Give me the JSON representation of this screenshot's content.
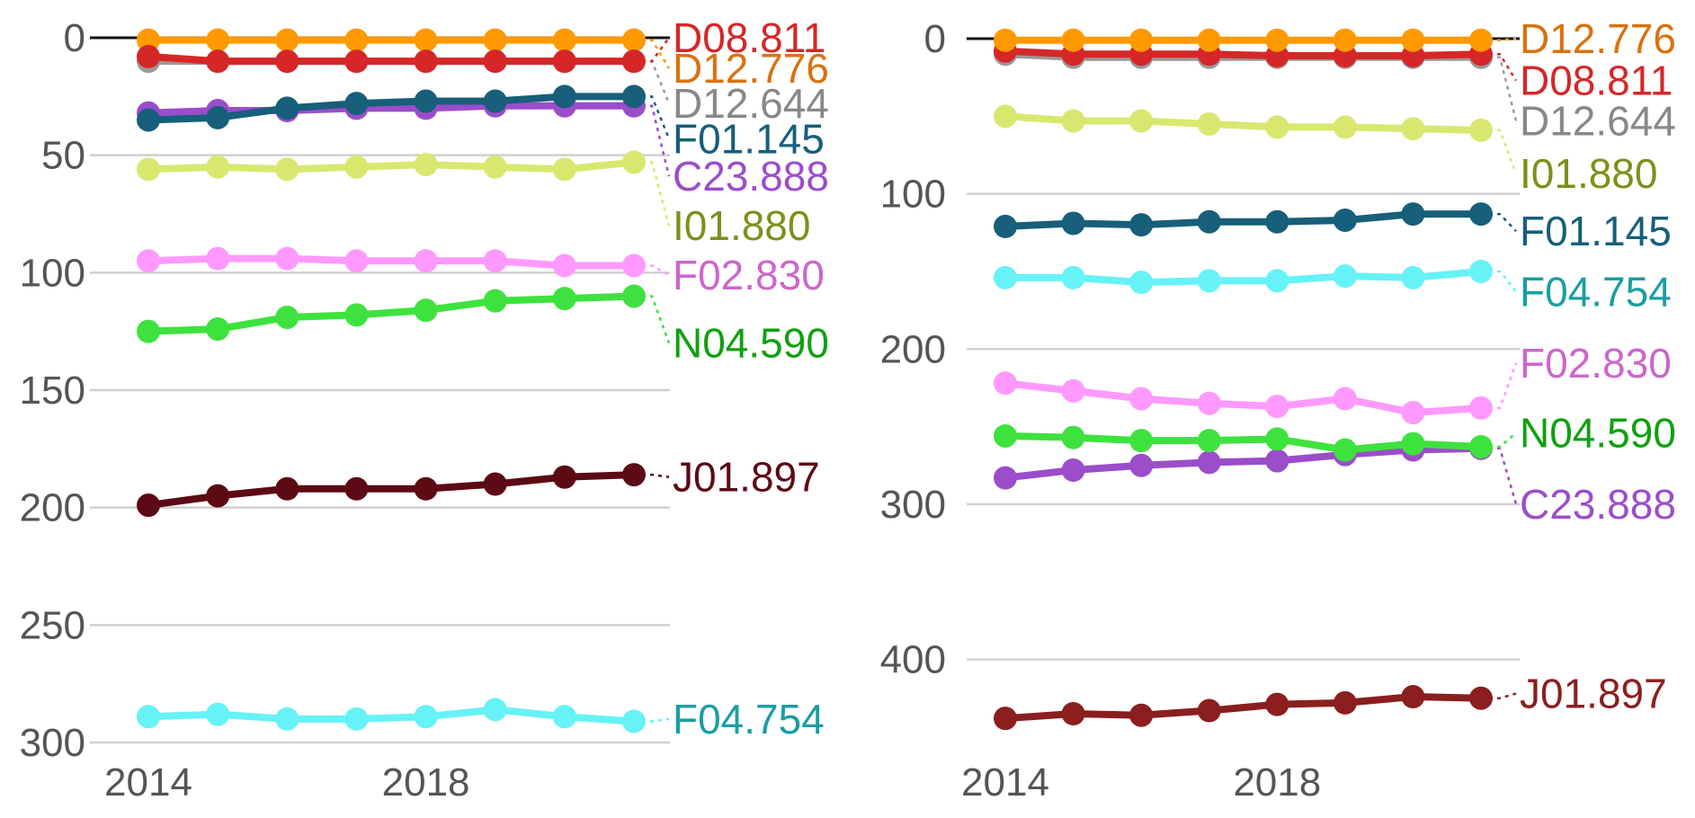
{
  "chart_data": [
    {
      "type": "line",
      "title": "",
      "xlabel": "",
      "ylabel": "",
      "y_inverted": true,
      "ylim": [
        0,
        300
      ],
      "y_ticks": [
        0,
        50,
        100,
        150,
        200,
        250,
        300
      ],
      "x": [
        2014,
        2015,
        2016,
        2017,
        2018,
        2019,
        2020,
        2021
      ],
      "x_ticks": [
        2014,
        2018
      ],
      "series": [
        {
          "name": "D08.811",
          "color": "#d62728",
          "values": [
            8,
            10,
            10,
            10,
            10,
            10,
            10,
            10
          ],
          "label_value": 0
        },
        {
          "name": "D12.776",
          "color": "#ff9900",
          "values": [
            1,
            1,
            1,
            1,
            1,
            1,
            1,
            1
          ],
          "label_value": 13
        },
        {
          "name": "D12.644",
          "color": "#999999",
          "values": [
            10,
            10,
            10,
            10,
            10,
            10,
            10,
            10
          ],
          "label_value": 28
        },
        {
          "name": "F01.145",
          "color": "#175f7a",
          "values": [
            35,
            34,
            30,
            28,
            27,
            27,
            25,
            25
          ],
          "label_value": 43
        },
        {
          "name": "C23.888",
          "color": "#9b4dca",
          "values": [
            32,
            31,
            31,
            30,
            30,
            29,
            29,
            29
          ],
          "label_value": 59
        },
        {
          "name": "I01.880",
          "color": "#d8e86f",
          "values": [
            56,
            55,
            56,
            55,
            54,
            55,
            56,
            53
          ],
          "label_value": 80
        },
        {
          "name": "F02.830",
          "color": "#ff99ff",
          "values": [
            95,
            94,
            94,
            95,
            95,
            95,
            97,
            97
          ],
          "label_value": 101
        },
        {
          "name": "N04.590",
          "color": "#3ee23e",
          "values": [
            125,
            124,
            119,
            118,
            116,
            112,
            111,
            110
          ],
          "label_value": 130
        },
        {
          "name": "J01.897",
          "color": "#5c0a14",
          "values": [
            199,
            195,
            192,
            192,
            192,
            190,
            187,
            186
          ],
          "label_value": 187
        },
        {
          "name": "F04.754",
          "color": "#66f2f7",
          "values": [
            289,
            288,
            290,
            290,
            289,
            286,
            289,
            291
          ],
          "label_value": 290
        }
      ]
    },
    {
      "type": "line",
      "title": "",
      "xlabel": "",
      "ylabel": "",
      "y_inverted": true,
      "ylim": [
        0,
        435
      ],
      "y_ticks": [
        0,
        100,
        200,
        300,
        400
      ],
      "x": [
        2014,
        2015,
        2016,
        2017,
        2018,
        2019,
        2020,
        2021
      ],
      "x_ticks": [
        2014,
        2018
      ],
      "series": [
        {
          "name": "D12.776",
          "color": "#ff9900",
          "values": [
            1,
            1,
            1,
            1,
            1,
            1,
            1,
            1
          ],
          "label_value": 0
        },
        {
          "name": "D08.811",
          "color": "#d62728",
          "values": [
            8,
            10,
            10,
            10,
            11,
            11,
            11,
            10
          ],
          "label_value": 27
        },
        {
          "name": "D12.644",
          "color": "#999999",
          "values": [
            10,
            12,
            12,
            12,
            12,
            12,
            12,
            12
          ],
          "label_value": 53
        },
        {
          "name": "I01.880",
          "color": "#d8e86f",
          "values": [
            50,
            53,
            53,
            55,
            57,
            57,
            58,
            59
          ],
          "label_value": 87
        },
        {
          "name": "F01.145",
          "color": "#175f7a",
          "values": [
            121,
            119,
            120,
            118,
            118,
            117,
            113,
            113
          ],
          "label_value": 124
        },
        {
          "name": "F04.754",
          "color": "#66f2f7",
          "values": [
            154,
            154,
            157,
            156,
            156,
            153,
            154,
            150
          ],
          "label_value": 163
        },
        {
          "name": "F02.830",
          "color": "#ff99ff",
          "values": [
            222,
            227,
            232,
            235,
            237,
            232,
            241,
            238
          ],
          "label_value": 209
        },
        {
          "name": "N04.590",
          "color": "#3ee23e",
          "values": [
            256,
            257,
            259,
            259,
            258,
            265,
            261,
            263
          ],
          "label_value": 254
        },
        {
          "name": "C23.888",
          "color": "#9b4dca",
          "values": [
            283,
            278,
            275,
            273,
            272,
            268,
            265,
            264
          ],
          "label_value": 300
        },
        {
          "name": "J01.897",
          "color": "#8b1e1e",
          "values": [
            438,
            435,
            436,
            433,
            429,
            428,
            424,
            425
          ],
          "label_value": 422
        }
      ]
    }
  ]
}
